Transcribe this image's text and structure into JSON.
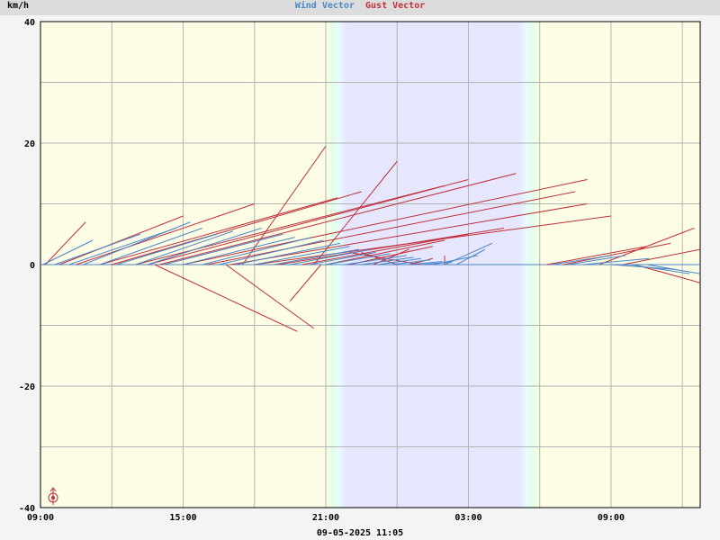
{
  "chart_data": {
    "type": "vector",
    "title_parts": [
      {
        "text": "Wind Vector",
        "color": "#4a86c8"
      },
      {
        "text": "Gust Vector",
        "color": "#c0303a"
      }
    ],
    "unit_label": "km/h",
    "timestamp": "09-05-2025 11:05",
    "ylim": [
      -40,
      40
    ],
    "y_ticks": [
      {
        "value": 40,
        "label": "40"
      },
      {
        "value": 20,
        "label": "20"
      },
      {
        "value": 0,
        "label": "0"
      },
      {
        "value": -20,
        "label": "-20"
      },
      {
        "value": -40,
        "label": "-40"
      }
    ],
    "x_range_hours": [
      0,
      27.75
    ],
    "x_ticks": [
      {
        "hours": 0,
        "label": "09:00"
      },
      {
        "hours": 6,
        "label": "15:00"
      },
      {
        "hours": 12,
        "label": "21:00"
      },
      {
        "hours": 18,
        "label": "03:00"
      },
      {
        "hours": 24,
        "label": "09:00"
      }
    ],
    "night_band_hours": [
      12,
      21
    ],
    "grid": true,
    "colors": {
      "wind": "#4a86c8",
      "gust": "#c0303a",
      "day": "#fdfde6",
      "night": "#e6e6fd",
      "grid": "#b4b4b4"
    },
    "gust_vectors": [
      [
        0.2,
        1.9,
        7.0
      ],
      [
        0.8,
        6.0,
        8.0
      ],
      [
        1.5,
        9.0,
        10.0
      ],
      [
        2.5,
        12.5,
        11.0
      ],
      [
        3.0,
        13.5,
        12.0
      ],
      [
        4.0,
        17.0,
        13.0
      ],
      [
        4.5,
        18.0,
        14.0
      ],
      [
        5.0,
        20.0,
        15.0
      ],
      [
        6.0,
        23.0,
        14.0
      ],
      [
        7.0,
        22.5,
        12.0
      ],
      [
        8.0,
        23.0,
        10.0
      ],
      [
        9.0,
        24.0,
        8.0
      ],
      [
        10.0,
        19.5,
        6.0
      ],
      [
        11.0,
        18.0,
        5.0
      ],
      [
        12.0,
        17.0,
        4.0
      ],
      [
        13.0,
        16.5,
        3.0
      ],
      [
        14.0,
        15.5,
        2.5
      ],
      [
        15.0,
        13.5,
        2.0
      ],
      [
        16.0,
        13.0,
        2.0
      ],
      [
        17.0,
        17.0,
        1.5
      ],
      [
        4.8,
        10.8,
        -11.0
      ],
      [
        7.8,
        11.5,
        -10.5
      ],
      [
        11.8,
        10.5,
        -6.0
      ],
      [
        8.5,
        12.0,
        19.5
      ],
      [
        11.5,
        15.0,
        17.0
      ],
      [
        15.5,
        16.5,
        1.0
      ],
      [
        21.3,
        25.5,
        3.0
      ],
      [
        22.0,
        26.5,
        3.5
      ],
      [
        23.5,
        27.5,
        6.0
      ],
      [
        24.5,
        27.75,
        2.5
      ],
      [
        25.0,
        27.75,
        -3.0
      ]
    ],
    "wind_vectors": [
      [
        0.1,
        2.2,
        4.0
      ],
      [
        0.6,
        4.2,
        5.0
      ],
      [
        1.2,
        5.7,
        6.0
      ],
      [
        1.8,
        6.3,
        7.0
      ],
      [
        2.5,
        6.8,
        6.0
      ],
      [
        3.2,
        7.4,
        5.0
      ],
      [
        4.0,
        8.1,
        5.5
      ],
      [
        4.5,
        9.3,
        6.0
      ],
      [
        5.2,
        10.2,
        5.0
      ],
      [
        6.0,
        10.7,
        4.5
      ],
      [
        6.8,
        11.4,
        4.5
      ],
      [
        7.5,
        11.9,
        4.0
      ],
      [
        8.2,
        12.6,
        3.5
      ],
      [
        9.0,
        13.0,
        3.0
      ],
      [
        9.8,
        13.4,
        2.5
      ],
      [
        10.5,
        13.9,
        2.5
      ],
      [
        11.3,
        14.1,
        2.0
      ],
      [
        12.0,
        14.7,
        1.8
      ],
      [
        12.8,
        15.4,
        1.5
      ],
      [
        13.5,
        15.7,
        1.2
      ],
      [
        14.2,
        16.0,
        1.0
      ],
      [
        14.8,
        16.4,
        0.8
      ],
      [
        15.5,
        16.9,
        0.5
      ],
      [
        16.0,
        17.3,
        0.4
      ],
      [
        16.5,
        18.4,
        1.5
      ],
      [
        17.0,
        19.0,
        3.5
      ],
      [
        17.5,
        18.7,
        2.5
      ],
      [
        21.5,
        24.0,
        1.5
      ],
      [
        22.2,
        24.6,
        1.5
      ],
      [
        22.8,
        25.6,
        1.0
      ],
      [
        23.5,
        26.0,
        0.0
      ],
      [
        24.0,
        26.7,
        -0.8
      ],
      [
        24.8,
        27.3,
        -1.5
      ],
      [
        25.5,
        27.75,
        -1.5
      ]
    ]
  }
}
